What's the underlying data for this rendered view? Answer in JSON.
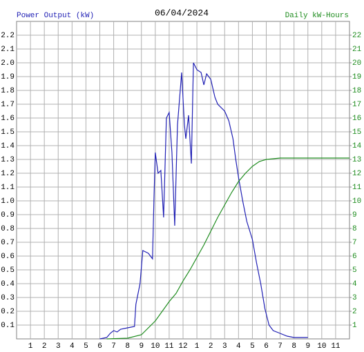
{
  "chart_data": {
    "type": "line",
    "title": "06/04/2024",
    "y_label": "Power Output (kW)",
    "y2_label": "Daily kW-Hours",
    "xlim": [
      0,
      24
    ],
    "xticks": [
      1,
      2,
      3,
      4,
      5,
      6,
      7,
      8,
      9,
      10,
      11,
      12,
      {
        "value": 13,
        "label": "1"
      },
      {
        "value": 14,
        "label": "2"
      },
      {
        "value": 15,
        "label": "3"
      },
      {
        "value": 16,
        "label": "4"
      },
      {
        "value": 17,
        "label": "5"
      },
      {
        "value": 18,
        "label": "6"
      },
      {
        "value": 19,
        "label": "7"
      },
      {
        "value": 20,
        "label": "8"
      },
      {
        "value": 21,
        "label": "9"
      },
      {
        "value": 22,
        "label": "10"
      },
      {
        "value": 23,
        "label": "11"
      }
    ],
    "ylim": [
      0,
      2.3
    ],
    "yticks": [
      0.1,
      0.2,
      0.3,
      0.4,
      0.5,
      0.6,
      0.7,
      0.8,
      0.9,
      {
        "value": 1,
        "label": "1.0"
      },
      1.1,
      1.2,
      1.3,
      1.4,
      1.5,
      1.6,
      1.7,
      1.8,
      1.9,
      {
        "value": 2,
        "label": "2.0"
      },
      2.1,
      2.2
    ],
    "y2lim": [
      0,
      23
    ],
    "y2ticks": [
      1,
      2,
      3,
      4,
      5,
      6,
      7,
      8,
      9,
      10,
      11,
      12,
      13,
      14,
      15,
      16,
      17,
      18,
      19,
      20,
      21,
      22
    ],
    "grid": true,
    "series": [
      {
        "name": "Power Output (kW)",
        "color": "#1f1fb4",
        "x": [
          6.0,
          6.5,
          6.75,
          7.0,
          7.25,
          7.5,
          8.0,
          8.5,
          8.6,
          8.9,
          9.1,
          9.5,
          9.8,
          9.9,
          10.0,
          10.2,
          10.4,
          10.6,
          10.8,
          11.0,
          11.2,
          11.4,
          11.6,
          11.9,
          12.1,
          12.2,
          12.4,
          12.6,
          12.75,
          13.0,
          13.3,
          13.5,
          13.7,
          14.0,
          14.3,
          14.5,
          15.0,
          15.3,
          15.6,
          15.8,
          16.0,
          16.3,
          16.6,
          17.0,
          17.3,
          17.6,
          17.9,
          18.2,
          18.5,
          19.0,
          19.5,
          20.0,
          21.0
        ],
        "values": [
          0,
          0.01,
          0.04,
          0.06,
          0.05,
          0.07,
          0.08,
          0.09,
          0.25,
          0.4,
          0.64,
          0.62,
          0.58,
          1.0,
          1.35,
          1.2,
          1.22,
          0.88,
          1.6,
          1.64,
          1.35,
          0.82,
          1.55,
          1.93,
          1.55,
          1.45,
          1.62,
          1.27,
          2.0,
          1.95,
          1.93,
          1.84,
          1.92,
          1.88,
          1.75,
          1.7,
          1.65,
          1.58,
          1.45,
          1.3,
          1.17,
          1.0,
          0.85,
          0.72,
          0.55,
          0.4,
          0.22,
          0.1,
          0.06,
          0.04,
          0.02,
          0.01,
          0.01
        ]
      },
      {
        "name": "Daily kW-Hours",
        "color": "#1e8c1e",
        "axis": "y2",
        "x": [
          6.5,
          8.0,
          9.0,
          10.0,
          10.5,
          11.0,
          11.5,
          12.0,
          12.5,
          13.0,
          13.5,
          14.0,
          14.5,
          15.0,
          15.5,
          16.0,
          16.5,
          17.0,
          17.5,
          18.0,
          18.5,
          19.0,
          24.0
        ],
        "values": [
          0,
          0.05,
          0.3,
          1.3,
          2.0,
          2.7,
          3.3,
          4.2,
          5.0,
          5.9,
          6.8,
          7.8,
          8.8,
          9.7,
          10.6,
          11.4,
          12.0,
          12.5,
          12.85,
          13.0,
          13.05,
          13.1,
          13.1
        ]
      }
    ]
  }
}
